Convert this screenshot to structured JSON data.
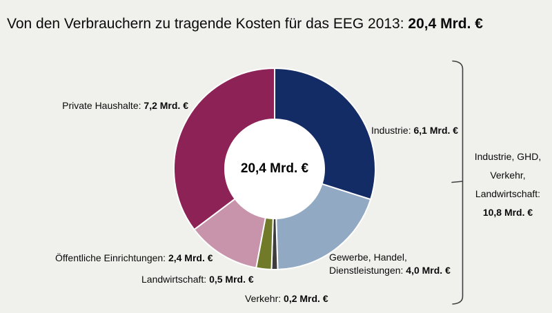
{
  "page": {
    "background": "#f0f0ed"
  },
  "title": {
    "text": "Von den Verbrauchern zu tragende Kosten für das EEG 2013: ",
    "value": "20,4 Mrd. €"
  },
  "chart_data": {
    "type": "pie",
    "style": "donut",
    "title": "Von den Verbrauchern zu tragende Kosten für das EEG 2013: 20,4 Mrd. €",
    "unit": "Mrd. €",
    "total_value": 20.4,
    "center_label": "20,4 Mrd. €",
    "start_angle_deg": 0,
    "direction": "clockwise",
    "legend": "none",
    "segments": [
      {
        "id": "industrie",
        "label": "Industrie",
        "value": 6.1,
        "value_label": "6,1 Mrd. €",
        "color": "#142c66"
      },
      {
        "id": "gewerbe-handel-dienstleistungen",
        "label": "Gewerbe, Handel, Dienstleistungen",
        "value": 4.0,
        "value_label": "4,0 Mrd. €",
        "color": "#91a9c2"
      },
      {
        "id": "verkehr",
        "label": "Verkehr",
        "value": 0.2,
        "value_label": "0,2 Mrd. €",
        "color": "#3d3d3d"
      },
      {
        "id": "landwirtschaft",
        "label": "Landwirtschaft",
        "value": 0.5,
        "value_label": "0,5 Mrd. €",
        "color": "#707a28"
      },
      {
        "id": "oeffentliche-einrichtungen",
        "label": "Öffentliche Einrichtungen",
        "value": 2.4,
        "value_label": "2,4 Mrd. €",
        "color": "#c794ac"
      },
      {
        "id": "private-haushalte",
        "label": "Private Haushalte",
        "value": 7.2,
        "value_label": "7,2 Mrd. €",
        "color": "#8d2257"
      }
    ],
    "group_annotation": {
      "lines": [
        "Industrie, GHD,",
        "Verkehr,",
        "Landwirtschaft:"
      ],
      "value": 10.8,
      "value_label": "10,8 Mrd. €"
    }
  },
  "callouts": {
    "private_haushalte": {
      "name": "Private Haushalte: ",
      "value": "7,2 Mrd. €"
    },
    "industrie": {
      "name": "Industrie: ",
      "value": "6,1 Mrd. €"
    },
    "gewerbe": {
      "line1": "Gewerbe, Handel,",
      "line2_name": "Dienstleistungen: ",
      "value": "4,0 Mrd. €"
    },
    "oeffentliche": {
      "name": "Öffentliche Einrichtungen: ",
      "value": "2,4 Mrd. €"
    },
    "landwirtschaft": {
      "name": "Landwirtschaft: ",
      "value": "0,5 Mrd. €"
    },
    "verkehr": {
      "name": "Verkehr: ",
      "value": "0,2 Mrd. €"
    }
  }
}
